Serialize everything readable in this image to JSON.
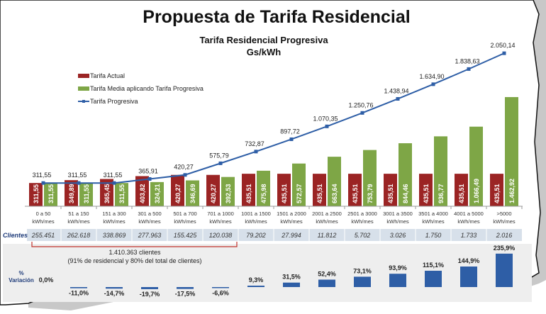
{
  "header": {
    "title": "Propuesta de Tarifa Residencial",
    "subtitle1": "Tarifa Residencial Progresiva",
    "subtitle2": "Gs/kWh"
  },
  "colors": {
    "actual": "#9b2424",
    "media": "#7ea646",
    "progresiva": "#2e5ea6",
    "variacion": "#2e5ea6"
  },
  "chart_data": [
    {
      "type": "bar",
      "title": "Tarifa Residencial Progresiva",
      "ylabel": "Gs/kWh",
      "legend": "top-left",
      "categories": [
        "0 a 50|kWh/mes",
        "51 a 150|kWh/mes",
        "151 a 300|kWh/mes",
        "301 a 500|kWh/mes",
        "501 a 700|kWh/mes",
        "701 a 1000|kWh/mes",
        "1001 a 1500|kWh/mes",
        "1501 a 2000|kWh/mes",
        "2001 a 2500|kWh/mes",
        "2501 a 3000|kWh/mes",
        "3001 a 3500|kWh/mes",
        "3501 a 4000|kWh/mes",
        "4001 a 5000|kWh/mes",
        ">5000|kWh/mes"
      ],
      "series": [
        {
          "name": "Tarifa Actual",
          "type": "bar",
          "values": [
            311.55,
            349.89,
            365.45,
            403.82,
            420.27,
            420.27,
            435.51,
            435.51,
            435.51,
            435.51,
            435.51,
            435.51,
            435.51,
            435.51
          ],
          "labels": [
            "311,55",
            "349,89",
            "365,45",
            "403,82",
            "420,27",
            "420,27",
            "435,51",
            "435,51",
            "435,51",
            "435,51",
            "435,51",
            "435,51",
            "435,51",
            "435,51"
          ]
        },
        {
          "name": "Tarifa Media aplicando Tarifa Progresiva",
          "type": "bar",
          "values": [
            311.55,
            311.55,
            311.55,
            324.21,
            346.69,
            392.53,
            475.98,
            572.57,
            663.64,
            753.79,
            844.46,
            936.77,
            1066.49,
            1462.92
          ],
          "labels": [
            "311,55",
            "311,55",
            "311,55",
            "324,21",
            "346,69",
            "392,53",
            "475,98",
            "572,57",
            "663,64",
            "753,79",
            "844,46",
            "936,77",
            "1.066,49",
            "1.462,92"
          ]
        },
        {
          "name": "Tarifa Progresiva",
          "type": "line",
          "values": [
            311.55,
            311.55,
            311.55,
            365.91,
            420.27,
            575.79,
            732.87,
            897.72,
            1070.35,
            1250.76,
            1438.94,
            1634.9,
            1838.63,
            2050.14
          ],
          "labels": [
            "311,55",
            "311,55",
            "311,55",
            "365,91",
            "420,27",
            "575,79",
            "732,87",
            "897,72",
            "1.070,35",
            "1.250,76",
            "1.438,94",
            "1.634,90",
            "1.838,63",
            "2.050,14"
          ]
        }
      ]
    },
    {
      "type": "bar",
      "ylabel": "% Variación",
      "values": [
        0.0,
        -11.0,
        -14.7,
        -19.7,
        -17.5,
        -6.6,
        9.3,
        31.5,
        52.4,
        73.1,
        93.9,
        115.1,
        144.9,
        235.9
      ],
      "labels": [
        "0,0%",
        "-11,0%",
        "-14,7%",
        "-19,7%",
        "-17,5%",
        "-6,6%",
        "9,3%",
        "31,5%",
        "52,4%",
        "73,1%",
        "93,9%",
        "115,1%",
        "144,9%",
        "235,9%"
      ]
    }
  ],
  "clientes": {
    "label": "Clientes",
    "values": [
      "255.451",
      "262.618",
      "338.869",
      "277.963",
      "155.425",
      "120.038",
      "79.202",
      "27.994",
      "11.812",
      "5.702",
      "3.026",
      "1.750",
      "1.733",
      "2.016"
    ],
    "bracket_line1": "1.410.363 clientes",
    "bracket_line2": "(91% de residencial y 80% del total de clientes)"
  },
  "variacion": {
    "label_line1": "%",
    "label_line2": "Variación"
  }
}
